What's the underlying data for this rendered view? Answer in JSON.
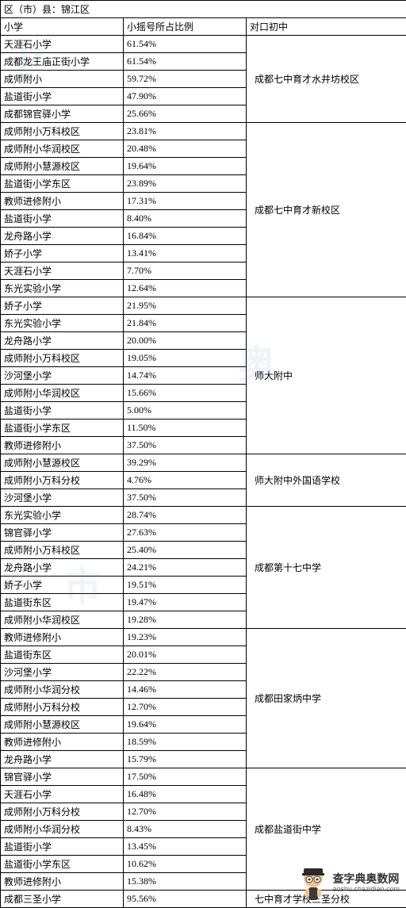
{
  "header_district": "区（市）县：锦江区",
  "columns": [
    "小学",
    "小摇号所占比例",
    "对口初中"
  ],
  "groups": [
    {
      "middle_school": "成都七中育才水井坊校区",
      "rows": [
        [
          "天涯石小学",
          "61.54%"
        ],
        [
          "成都龙王庙正街小学",
          "61.54%"
        ],
        [
          "成师附小",
          "59.72%"
        ],
        [
          "盐道街小学",
          "47.90%"
        ],
        [
          "成都锦官驿小学",
          "25.66%"
        ]
      ]
    },
    {
      "middle_school": "成都七中育才新校区",
      "rows": [
        [
          "成师附小万科校区",
          "23.81%"
        ],
        [
          "成师附小华润校区",
          "20.48%"
        ],
        [
          "成师附小慧源校区",
          "19.64%"
        ],
        [
          "盐道街小学东区",
          "23.89%"
        ],
        [
          "教师进修附小",
          "17.31%"
        ],
        [
          "盐道街小学",
          "8.40%"
        ],
        [
          "龙舟路小学",
          "16.84%"
        ],
        [
          "娇子小学",
          "13.41%"
        ],
        [
          "天涯石小学",
          "7.70%"
        ],
        [
          "东光实验小学",
          "12.64%"
        ]
      ]
    },
    {
      "middle_school": "师大附中",
      "rows": [
        [
          "娇子小学",
          "21.95%"
        ],
        [
          "东光实验小学",
          "21.84%"
        ],
        [
          "龙舟路小学",
          "20.00%"
        ],
        [
          "成师附小万科校区",
          "19.05%"
        ],
        [
          "沙河堡小学",
          "14.74%"
        ],
        [
          "成师附小华润校区",
          "15.66%"
        ],
        [
          "盐道街小学",
          "5.00%"
        ],
        [
          "盐道街小学东区",
          "11.50%"
        ],
        [
          "教师进修附小",
          "37.50%"
        ]
      ]
    },
    {
      "middle_school": "师大附中外国语学校",
      "rows": [
        [
          "成师附小慧源校区",
          "39.29%"
        ],
        [
          "成师附小万科分校",
          "4.76%"
        ],
        [
          "沙河堡小学",
          "37.50%"
        ]
      ]
    },
    {
      "middle_school": "成都第十七中学",
      "rows": [
        [
          "东光实验小学",
          "28.74%"
        ],
        [
          "锦官驿小学",
          "27.63%"
        ],
        [
          "成师附小万科校区",
          "25.40%"
        ],
        [
          "龙舟路小学",
          "24.21%"
        ],
        [
          "娇子小学",
          "19.51%"
        ],
        [
          "盐道街东区",
          "19.47%"
        ],
        [
          "成师附小华润校区",
          "19.28%"
        ]
      ]
    },
    {
      "middle_school": "成都田家炳中学",
      "rows": [
        [
          "教师进修附小",
          "19.23%"
        ],
        [
          "盐道街东区",
          "20.01%"
        ],
        [
          "沙河堡小学",
          "22.22%"
        ],
        [
          "成师附小华润分校",
          "14.46%"
        ],
        [
          "成师附小万科分校",
          "12.70%"
        ],
        [
          "成师附小慧源校区",
          "19.64%"
        ],
        [
          "教师进修附小",
          "18.59%"
        ],
        [
          "龙舟路小学",
          "15.79%"
        ]
      ]
    },
    {
      "middle_school": "成都盐道街中学",
      "rows": [
        [
          "锦官驿小学",
          "17.50%"
        ],
        [
          "天涯石小学",
          "16.48%"
        ],
        [
          "成师附小万科分校",
          "12.70%"
        ],
        [
          "成师附小华润分校",
          "8.43%"
        ],
        [
          "盐道街小学",
          "13.45%"
        ],
        [
          "盐道街小学东区",
          "10.62%"
        ],
        [
          "教师进修附小",
          "15.38%"
        ]
      ]
    },
    {
      "middle_school": "七中育才学校三圣分校",
      "rows": [
        [
          "成都三圣小学",
          "95.56%"
        ]
      ]
    }
  ],
  "logo": {
    "cn": "查字典奥数网",
    "url": "aoshu.chazidian.com"
  },
  "colors": {
    "border": "#000000",
    "bg": "#ffffff",
    "watermark": "#3a7ab8"
  }
}
